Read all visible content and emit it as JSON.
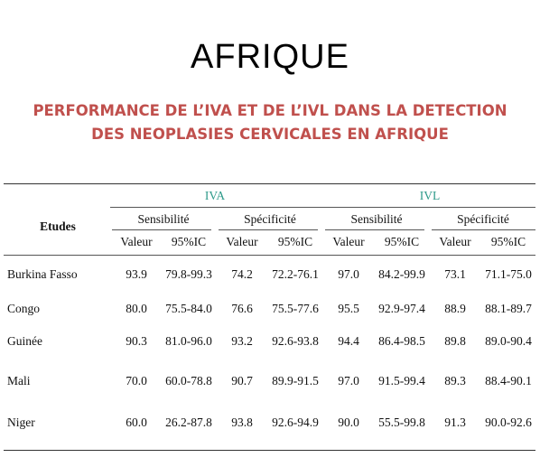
{
  "title": "AFRIQUE",
  "subtitle_line1": "PERFORMANCE DE L’IVA ET DE L’IVL DANS LA DETECTION",
  "subtitle_line2": "DES NEOPLASIES CERVICALES EN AFRIQUE",
  "table": {
    "studies_header": "Etudes",
    "group_iva": "IVA",
    "group_ivl": "IVL",
    "sensibilite": "Sensibilité",
    "specificite": "Spécificité",
    "valeur": "Valeur",
    "ic": "95%IC",
    "rows": [
      {
        "name": "Burkina Fasso",
        "v": [
          "93.9",
          "79.8-99.3",
          "74.2",
          "72.2-76.1",
          "97.0",
          "84.2-99.9",
          "73.1",
          "71.1-75.0"
        ]
      },
      {
        "name": "Congo",
        "v": [
          "80.0",
          "75.5-84.0",
          "76.6",
          "75.5-77.6",
          "95.5",
          "92.9-97.4",
          "88.9",
          "88.1-89.7"
        ]
      },
      {
        "name": "Guinée",
        "v": [
          "90.3",
          "81.0-96.0",
          "93.2",
          "92.6-93.8",
          "94.4",
          "86.4-98.5",
          "89.8",
          "89.0-90.4"
        ]
      },
      {
        "name": "Mali",
        "v": [
          "70.0",
          "60.0-78.8",
          "90.7",
          "89.9-91.5",
          "97.0",
          "91.5-99.4",
          "89.3",
          "88.4-90.1"
        ]
      },
      {
        "name": "Niger",
        "v": [
          "60.0",
          "26.2-87.8",
          "93.8",
          "92.6-94.9",
          "90.0",
          "55.5-99.8",
          "91.3",
          "90.0-92.6"
        ]
      }
    ]
  }
}
